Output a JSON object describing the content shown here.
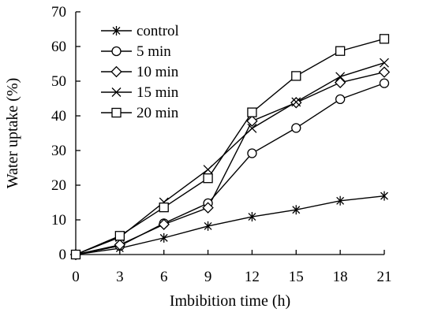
{
  "chart_data": {
    "type": "line",
    "xlabel": "Imbibition time (h)",
    "ylabel": "Water uptake (%)",
    "xlim": [
      0,
      21
    ],
    "ylim": [
      0,
      70
    ],
    "xticks": [
      0,
      3,
      6,
      9,
      12,
      15,
      18,
      21
    ],
    "yticks": [
      0,
      10,
      20,
      30,
      40,
      50,
      60,
      70
    ],
    "x": [
      0,
      3,
      6,
      9,
      12,
      15,
      18,
      21
    ],
    "grid": false,
    "legend_position": "top-left",
    "series": [
      {
        "name": "control",
        "marker": "asterisk",
        "values": [
          0,
          1.8,
          4.8,
          8.2,
          10.9,
          12.9,
          15.5,
          16.9
        ]
      },
      {
        "name": "5 min",
        "marker": "circle",
        "values": [
          0,
          2.5,
          9,
          14.8,
          29.2,
          36.5,
          44.8,
          49.4
        ]
      },
      {
        "name": "10 min",
        "marker": "diamond",
        "values": [
          0,
          2.8,
          8.7,
          13.5,
          38.5,
          43.8,
          49.6,
          52.6
        ]
      },
      {
        "name": "15 min",
        "marker": "x",
        "values": [
          0,
          5,
          15.1,
          24.5,
          36.4,
          44,
          51.3,
          55.3
        ]
      },
      {
        "name": "20 min",
        "marker": "square",
        "values": [
          0,
          5.4,
          13.6,
          22,
          41,
          51.5,
          58.7,
          62.2
        ]
      }
    ]
  }
}
